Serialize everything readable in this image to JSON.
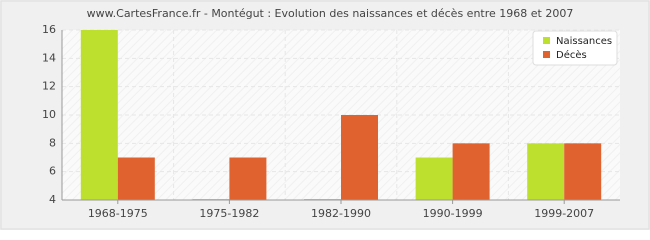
{
  "chart_data": {
    "type": "bar",
    "title": "www.CartesFrance.fr - Montégut : Evolution des naissances et décès entre 1968 et 2007",
    "categories": [
      "1968-1975",
      "1975-1982",
      "1982-1990",
      "1990-1999",
      "1999-2007"
    ],
    "series": [
      {
        "name": "Naissances",
        "color": "#bde02e",
        "values": [
          16,
          4,
          4,
          7,
          8
        ]
      },
      {
        "name": "Décès",
        "color": "#e0622e",
        "values": [
          7,
          7,
          10,
          8,
          8
        ]
      }
    ],
    "ylim": [
      4,
      16
    ],
    "yticks": [
      4,
      6,
      8,
      10,
      12,
      14,
      16
    ],
    "grid": true,
    "legend": "top-right"
  }
}
